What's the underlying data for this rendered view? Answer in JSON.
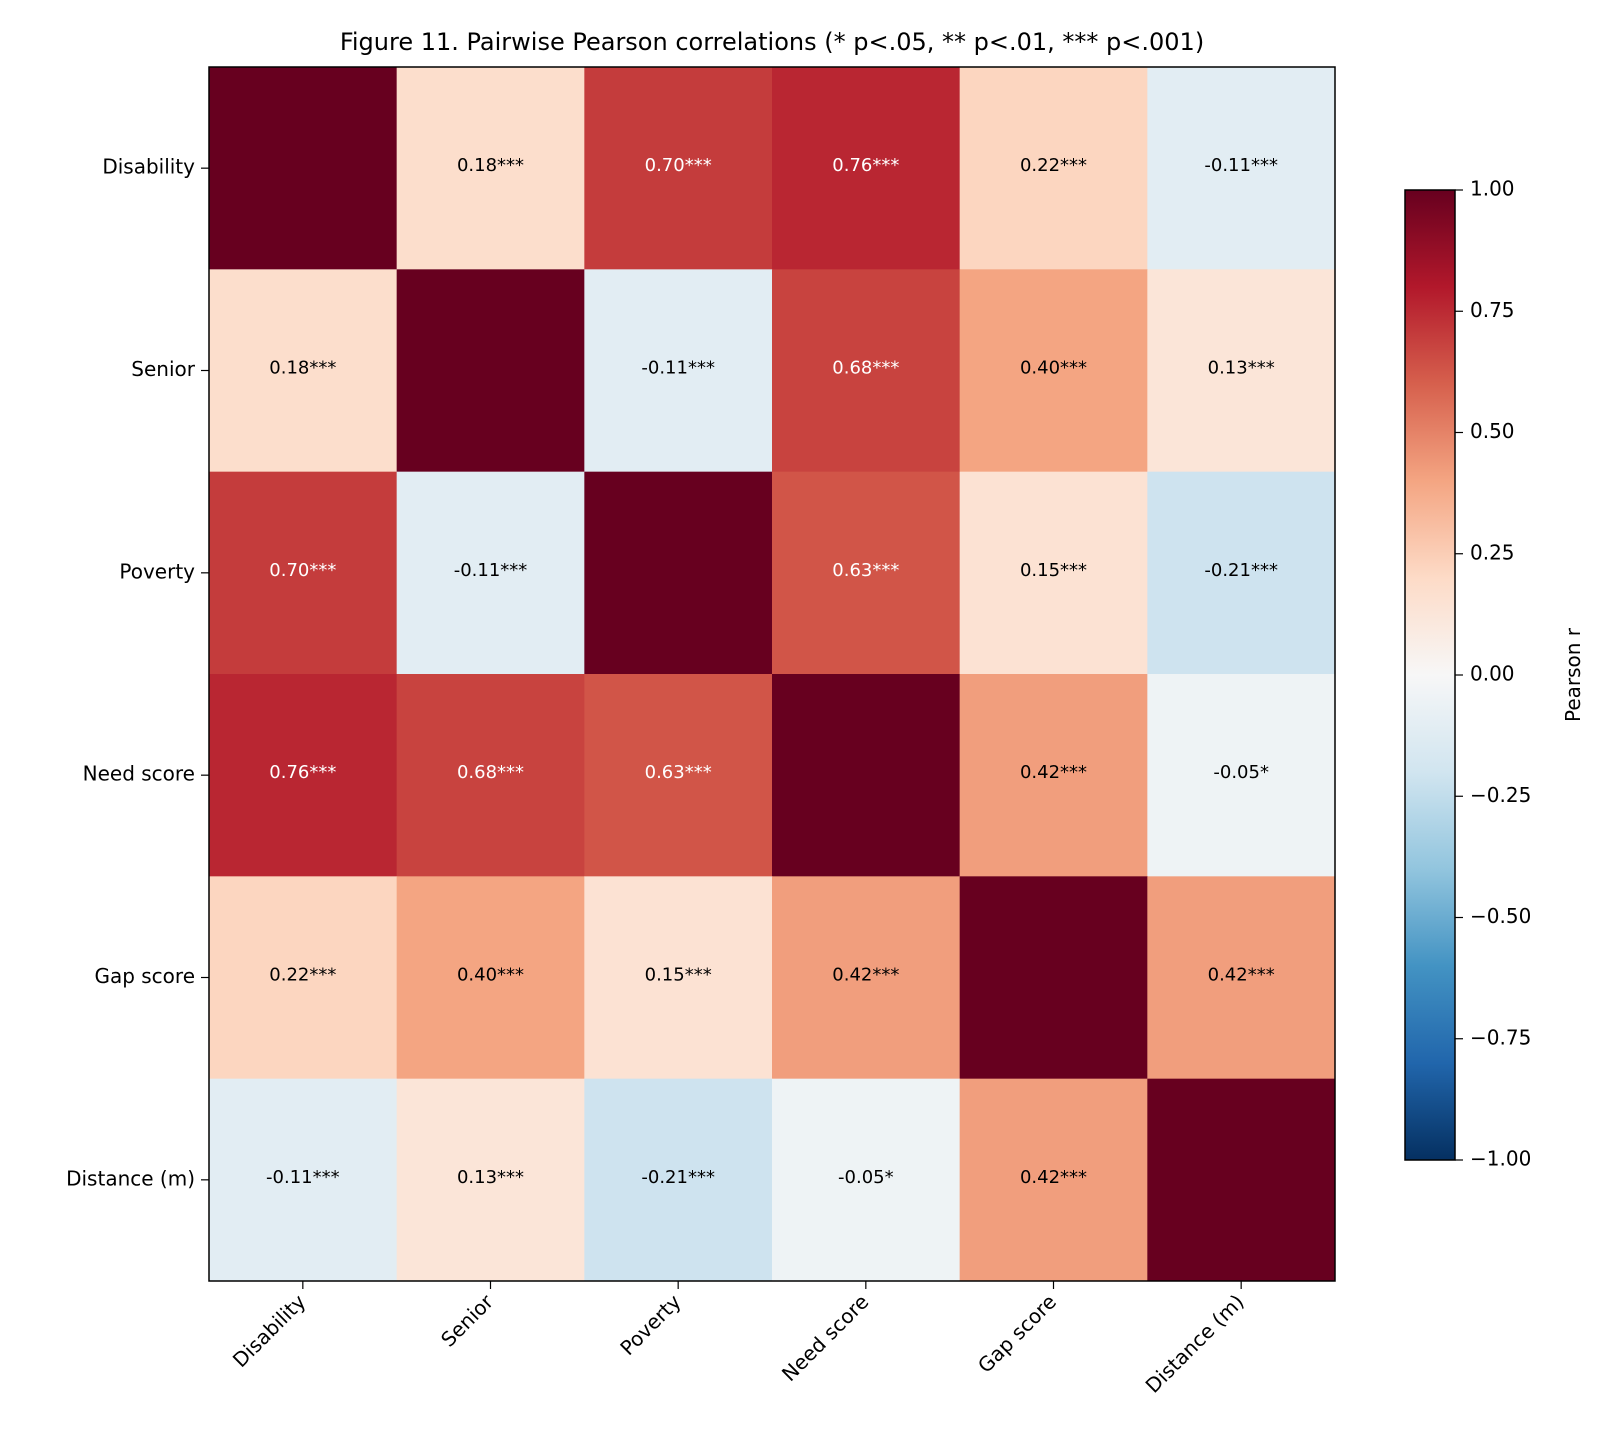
{
  "chart_data": {
    "type": "heatmap",
    "title": "Figure 11. Pairwise Pearson correlations (* p<.05, ** p<.01, *** p<.001)",
    "row_labels": [
      "Disability",
      "Senior",
      "Poverty",
      "Need score",
      "Gap score",
      "Distance (m)"
    ],
    "col_labels": [
      "Disability",
      "Senior",
      "Poverty",
      "Need score",
      "Gap score",
      "Distance (m)"
    ],
    "values": [
      [
        1.0,
        0.18,
        0.7,
        0.76,
        0.22,
        -0.11
      ],
      [
        0.18,
        1.0,
        -0.11,
        0.68,
        0.4,
        0.13
      ],
      [
        0.7,
        -0.11,
        1.0,
        0.63,
        0.15,
        -0.21
      ],
      [
        0.76,
        0.68,
        0.63,
        1.0,
        0.42,
        -0.05
      ],
      [
        0.22,
        0.4,
        0.15,
        0.42,
        1.0,
        0.42
      ],
      [
        -0.11,
        0.13,
        -0.21,
        -0.05,
        0.42,
        1.0
      ]
    ],
    "annotations": [
      [
        "",
        "0.18***",
        "0.70***",
        "0.76***",
        "0.22***",
        "-0.11***"
      ],
      [
        "0.18***",
        "",
        "-0.11***",
        "0.68***",
        "0.40***",
        "0.13***"
      ],
      [
        "0.70***",
        "-0.11***",
        "",
        "0.63***",
        "0.15***",
        "-0.21***"
      ],
      [
        "0.76***",
        "0.68***",
        "0.63***",
        "",
        "0.42***",
        "-0.05*"
      ],
      [
        "0.22***",
        "0.40***",
        "0.15***",
        "0.42***",
        "",
        "0.42***"
      ],
      [
        "-0.11***",
        "0.13***",
        "-0.21***",
        "-0.05*",
        "0.42***",
        ""
      ]
    ],
    "colormap": "RdBu_r",
    "vmin": -1.0,
    "vmax": 1.0,
    "colorbar": {
      "label": "Pearson r",
      "ticks": [
        "1.00",
        "0.75",
        "0.50",
        "0.25",
        "0.00",
        "−0.25",
        "−0.50",
        "−0.75",
        "−1.00"
      ],
      "tick_values": [
        1.0,
        0.75,
        0.5,
        0.25,
        0.0,
        -0.25,
        -0.5,
        -0.75,
        -1.0
      ]
    },
    "colormap_stops": [
      "#053061",
      "#2166ac",
      "#4393c3",
      "#92c5de",
      "#d1e5f0",
      "#f7f7f7",
      "#fddbc7",
      "#f4a582",
      "#d6604d",
      "#b2182b",
      "#67001f"
    ]
  }
}
